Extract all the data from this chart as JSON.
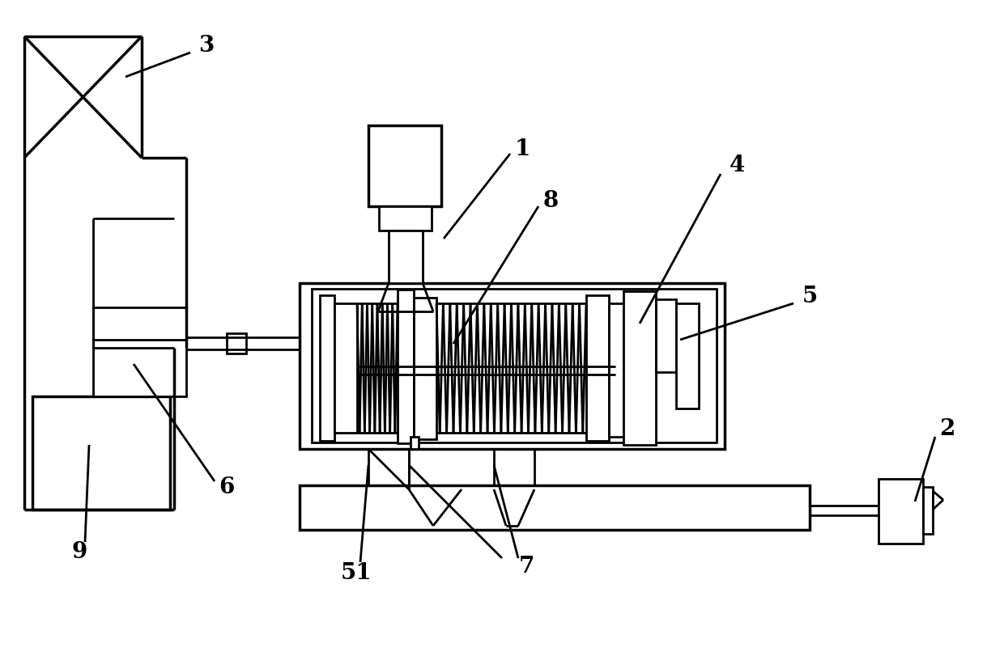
{
  "bg_color": "#ffffff",
  "lc": "#000000",
  "lw": 2.0,
  "tlw": 2.5,
  "fs": 20,
  "fw": "bold"
}
